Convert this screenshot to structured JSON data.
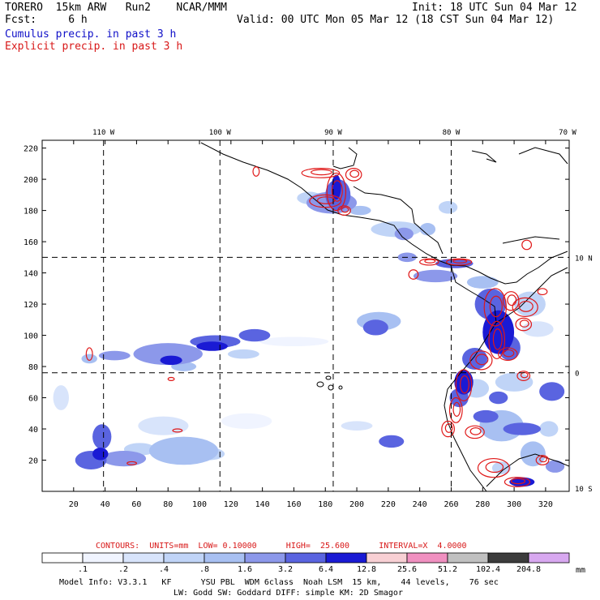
{
  "header": {
    "model": "TORERO  15km ARW   Run2    NCAR/MMM",
    "init": "Init: 18 UTC Sun 04 Mar 12",
    "fcst": "Fcst:     6 h",
    "valid": "Valid: 00 UTC Mon 05 Mar 12 (18 CST Sun 04 Mar 12)",
    "cumulus_label": "Cumulus precip. in past 3 h",
    "explicit_label": "Explicit precip. in past 3 h"
  },
  "colors": {
    "cumulus": "#1010c8",
    "explicit": "#d81818"
  },
  "chart_data": {
    "type": "heatmap",
    "title": "",
    "x_ticks": [
      "20",
      "40",
      "60",
      "80",
      "100",
      "120",
      "140",
      "160",
      "180",
      "200",
      "220",
      "240",
      "260",
      "280",
      "300",
      "320"
    ],
    "y_ticks": [
      "20",
      "40",
      "60",
      "80",
      "100",
      "120",
      "140",
      "160",
      "180",
      "200",
      "220"
    ],
    "xlim": [
      0,
      335
    ],
    "ylim": [
      0,
      225
    ],
    "lon_labels": [
      {
        "text": "110 W",
        "x": 39
      },
      {
        "text": "100 W",
        "x": 113
      },
      {
        "text": "90 W",
        "x": 185
      },
      {
        "text": "80 W",
        "x": 260
      },
      {
        "text": "70 W",
        "x": 335
      }
    ],
    "lat_labels": [
      {
        "text": "10 N",
        "y": 150
      },
      {
        "text": "0",
        "y": 76
      },
      {
        "text": "10 S",
        "y": 2
      }
    ],
    "meridians_x": [
      39,
      113,
      185,
      260
    ],
    "parallels_y": [
      150,
      76
    ],
    "grid": "dashed lat/lon lines",
    "contours_note": "CONTOURS:  UNITS=mm  LOW= 0.10000      HIGH=  25.600      INTERVAL=X  4.0000",
    "colorbar": {
      "unit": "mm",
      "levels": [
        ".1",
        ".2",
        ".4",
        ".8",
        "1.6",
        "3.2",
        "6.4",
        "12.8",
        "25.6",
        "51.2",
        "102.4",
        "204.8"
      ],
      "colors": [
        "#ffffff",
        "#f0f4ff",
        "#d8e4fb",
        "#c0d4f7",
        "#a8c0f2",
        "#8c98ea",
        "#5a64e0",
        "#1a1ad4",
        "#f8d0d4",
        "#f090c0",
        "#c0c0c0",
        "#3c3c3c",
        "#d8a8f0"
      ]
    },
    "cumulus_blobs": [
      {
        "x": 31,
        "y": 20,
        "rx": 10,
        "ry": 6,
        "level": 6
      },
      {
        "x": 37,
        "y": 24,
        "rx": 5,
        "ry": 4,
        "level": 7
      },
      {
        "x": 52,
        "y": 21,
        "rx": 14,
        "ry": 5,
        "level": 5
      },
      {
        "x": 38,
        "y": 35,
        "rx": 6,
        "ry": 8,
        "level": 6
      },
      {
        "x": 62,
        "y": 27,
        "rx": 10,
        "ry": 4,
        "level": 3
      },
      {
        "x": 90,
        "y": 26,
        "rx": 22,
        "ry": 9,
        "level": 4
      },
      {
        "x": 106,
        "y": 24,
        "rx": 10,
        "ry": 4,
        "level": 3
      },
      {
        "x": 77,
        "y": 42,
        "rx": 16,
        "ry": 6,
        "level": 2
      },
      {
        "x": 130,
        "y": 45,
        "rx": 16,
        "ry": 5,
        "level": 1
      },
      {
        "x": 12,
        "y": 60,
        "rx": 5,
        "ry": 8,
        "level": 2
      },
      {
        "x": 46,
        "y": 87,
        "rx": 10,
        "ry": 3,
        "level": 5
      },
      {
        "x": 30,
        "y": 85,
        "rx": 5,
        "ry": 3,
        "level": 4
      },
      {
        "x": 80,
        "y": 88,
        "rx": 22,
        "ry": 7,
        "level": 5
      },
      {
        "x": 82,
        "y": 84,
        "rx": 7,
        "ry": 3,
        "level": 7
      },
      {
        "x": 90,
        "y": 80,
        "rx": 8,
        "ry": 3,
        "level": 4
      },
      {
        "x": 110,
        "y": 96,
        "rx": 16,
        "ry": 4,
        "level": 6
      },
      {
        "x": 108,
        "y": 93,
        "rx": 10,
        "ry": 3,
        "level": 7
      },
      {
        "x": 135,
        "y": 100,
        "rx": 10,
        "ry": 4,
        "level": 6
      },
      {
        "x": 128,
        "y": 88,
        "rx": 10,
        "ry": 3,
        "level": 3
      },
      {
        "x": 160,
        "y": 96,
        "rx": 22,
        "ry": 3,
        "level": 1
      },
      {
        "x": 212,
        "y": 105,
        "rx": 8,
        "ry": 5,
        "level": 6
      },
      {
        "x": 214,
        "y": 109,
        "rx": 14,
        "ry": 6,
        "level": 4
      },
      {
        "x": 222,
        "y": 32,
        "rx": 8,
        "ry": 4,
        "level": 6
      },
      {
        "x": 200,
        "y": 42,
        "rx": 10,
        "ry": 3,
        "level": 2
      },
      {
        "x": 184,
        "y": 185,
        "rx": 16,
        "ry": 7,
        "level": 5
      },
      {
        "x": 188,
        "y": 190,
        "rx": 8,
        "ry": 10,
        "level": 6
      },
      {
        "x": 187,
        "y": 195,
        "rx": 3,
        "ry": 8,
        "level": 7
      },
      {
        "x": 170,
        "y": 188,
        "rx": 8,
        "ry": 4,
        "level": 3
      },
      {
        "x": 202,
        "y": 180,
        "rx": 7,
        "ry": 3,
        "level": 4
      },
      {
        "x": 225,
        "y": 168,
        "rx": 16,
        "ry": 5,
        "level": 3
      },
      {
        "x": 230,
        "y": 165,
        "rx": 6,
        "ry": 4,
        "level": 5
      },
      {
        "x": 245,
        "y": 168,
        "rx": 5,
        "ry": 4,
        "level": 4
      },
      {
        "x": 258,
        "y": 182,
        "rx": 6,
        "ry": 4,
        "level": 3
      },
      {
        "x": 232,
        "y": 150,
        "rx": 6,
        "ry": 3,
        "level": 5
      },
      {
        "x": 250,
        "y": 138,
        "rx": 14,
        "ry": 4,
        "level": 5
      },
      {
        "x": 262,
        "y": 146,
        "rx": 12,
        "ry": 3,
        "level": 6
      },
      {
        "x": 280,
        "y": 134,
        "rx": 10,
        "ry": 4,
        "level": 4
      },
      {
        "x": 285,
        "y": 120,
        "rx": 10,
        "ry": 10,
        "level": 6
      },
      {
        "x": 290,
        "y": 102,
        "rx": 10,
        "ry": 14,
        "level": 7
      },
      {
        "x": 297,
        "y": 92,
        "rx": 7,
        "ry": 8,
        "level": 6
      },
      {
        "x": 275,
        "y": 85,
        "rx": 8,
        "ry": 7,
        "level": 6
      },
      {
        "x": 268,
        "y": 70,
        "rx": 6,
        "ry": 8,
        "level": 7
      },
      {
        "x": 265,
        "y": 60,
        "rx": 6,
        "ry": 6,
        "level": 6
      },
      {
        "x": 276,
        "y": 66,
        "rx": 8,
        "ry": 6,
        "level": 3
      },
      {
        "x": 310,
        "y": 120,
        "rx": 10,
        "ry": 8,
        "level": 3
      },
      {
        "x": 315,
        "y": 104,
        "rx": 10,
        "ry": 5,
        "level": 2
      },
      {
        "x": 300,
        "y": 70,
        "rx": 12,
        "ry": 6,
        "level": 3
      },
      {
        "x": 324,
        "y": 64,
        "rx": 8,
        "ry": 6,
        "level": 6
      },
      {
        "x": 292,
        "y": 42,
        "rx": 14,
        "ry": 10,
        "level": 4
      },
      {
        "x": 305,
        "y": 40,
        "rx": 12,
        "ry": 4,
        "level": 6
      },
      {
        "x": 282,
        "y": 48,
        "rx": 8,
        "ry": 4,
        "level": 6
      },
      {
        "x": 312,
        "y": 24,
        "rx": 8,
        "ry": 8,
        "level": 4
      },
      {
        "x": 326,
        "y": 16,
        "rx": 6,
        "ry": 4,
        "level": 5
      },
      {
        "x": 292,
        "y": 15,
        "rx": 6,
        "ry": 4,
        "level": 3
      },
      {
        "x": 305,
        "y": 6,
        "rx": 8,
        "ry": 3,
        "level": 7
      },
      {
        "x": 290,
        "y": 60,
        "rx": 6,
        "ry": 4,
        "level": 6
      },
      {
        "x": 322,
        "y": 40,
        "rx": 6,
        "ry": 5,
        "level": 3
      }
    ],
    "explicit_blobs": [
      {
        "x": 187,
        "y": 192,
        "rx": 6,
        "ry": 12
      },
      {
        "x": 180,
        "y": 186,
        "rx": 10,
        "ry": 4
      },
      {
        "x": 177,
        "y": 204,
        "rx": 12,
        "ry": 3
      },
      {
        "x": 198,
        "y": 203,
        "rx": 5,
        "ry": 4
      },
      {
        "x": 192,
        "y": 180,
        "rx": 4,
        "ry": 3
      },
      {
        "x": 136,
        "y": 205,
        "rx": 2,
        "ry": 3
      },
      {
        "x": 236,
        "y": 139,
        "rx": 3,
        "ry": 3
      },
      {
        "x": 246,
        "y": 147,
        "rx": 6,
        "ry": 2
      },
      {
        "x": 265,
        "y": 147,
        "rx": 8,
        "ry": 2
      },
      {
        "x": 288,
        "y": 118,
        "rx": 7,
        "ry": 12
      },
      {
        "x": 298,
        "y": 122,
        "rx": 5,
        "ry": 6
      },
      {
        "x": 307,
        "y": 118,
        "rx": 8,
        "ry": 6
      },
      {
        "x": 306,
        "y": 107,
        "rx": 5,
        "ry": 4
      },
      {
        "x": 289,
        "y": 97,
        "rx": 5,
        "ry": 12
      },
      {
        "x": 279,
        "y": 84,
        "rx": 7,
        "ry": 6
      },
      {
        "x": 296,
        "y": 88,
        "rx": 6,
        "ry": 4
      },
      {
        "x": 268,
        "y": 68,
        "rx": 5,
        "ry": 10
      },
      {
        "x": 263,
        "y": 52,
        "rx": 4,
        "ry": 8
      },
      {
        "x": 258,
        "y": 40,
        "rx": 4,
        "ry": 5
      },
      {
        "x": 275,
        "y": 38,
        "rx": 6,
        "ry": 4
      },
      {
        "x": 287,
        "y": 15,
        "rx": 10,
        "ry": 6
      },
      {
        "x": 302,
        "y": 6,
        "rx": 8,
        "ry": 3
      },
      {
        "x": 318,
        "y": 20,
        "rx": 4,
        "ry": 3
      },
      {
        "x": 306,
        "y": 74,
        "rx": 4,
        "ry": 3
      },
      {
        "x": 318,
        "y": 128,
        "rx": 3,
        "ry": 2
      },
      {
        "x": 30,
        "y": 88,
        "rx": 2,
        "ry": 4
      },
      {
        "x": 82,
        "y": 72,
        "rx": 2,
        "ry": 1
      },
      {
        "x": 57,
        "y": 18,
        "rx": 3,
        "ry": 1
      },
      {
        "x": 86,
        "y": 39,
        "rx": 3,
        "ry": 1
      },
      {
        "x": 308,
        "y": 158,
        "rx": 3,
        "ry": 3
      }
    ]
  },
  "footer": {
    "model_info": "Model Info: V3.3.1   KF      YSU PBL  WDM 6class  Noah LSM  15 km,    44 levels,    76 sec",
    "physics": "LW: Godd SW: Goddard DIFF: simple KM: 2D Smagor"
  }
}
